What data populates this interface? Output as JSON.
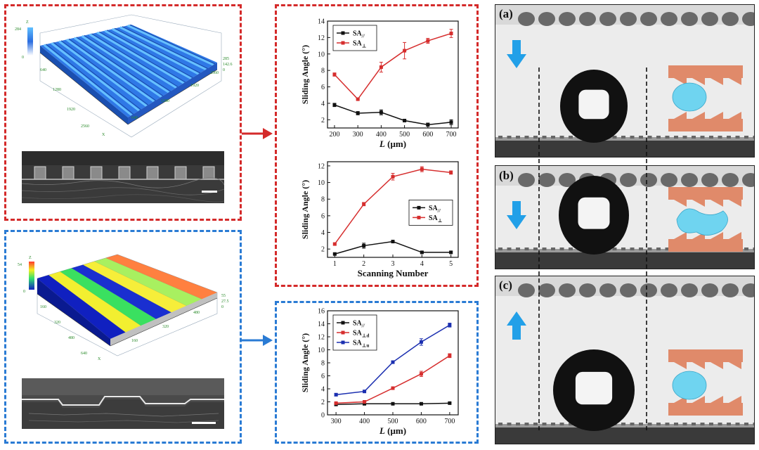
{
  "colors": {
    "red_frame": "#d42a2a",
    "blue_frame": "#2a7bd4",
    "arrow": "#22a0e8",
    "series_black": "#111111",
    "series_red": "#d62e2e",
    "series_blue": "#1b2fb0",
    "inset_orange": "#e08a6a",
    "inset_drop": "#6fd4f0"
  },
  "top_left": {
    "axis_label_z": "Z",
    "axis_label_x": "X",
    "z_ticks": [
      "284",
      "0"
    ],
    "x_ticks": [
      "640",
      "1280",
      "1920",
      "2560"
    ],
    "y_ticks": [
      "640",
      "1280",
      "1920",
      "2560"
    ],
    "right_ticks": [
      "285",
      "142.6",
      "0"
    ]
  },
  "bottom_left": {
    "axis_label_z": "Z",
    "axis_label_x": "X",
    "z_ticks": [
      "54",
      "0"
    ],
    "x_ticks": [
      "160",
      "320",
      "480",
      "640"
    ],
    "y_ticks": [
      "160",
      "320",
      "480"
    ],
    "right_ticks": [
      "55",
      "27.5",
      "0"
    ]
  },
  "chart_data": [
    {
      "type": "line",
      "ylabel": "Sliding Angle (°)",
      "xlabel": "L (μm)",
      "xlabel_italic": "L",
      "xlabel_unit": " (μm)",
      "x": [
        200,
        300,
        400,
        500,
        600,
        700
      ],
      "xlim": [
        170,
        730
      ],
      "ylim": [
        1,
        14
      ],
      "xticks": [
        "200",
        "300",
        "400",
        "500",
        "600",
        "700"
      ],
      "yticks": [
        "2",
        "4",
        "6",
        "8",
        "10",
        "12",
        "14"
      ],
      "legend": "top-left",
      "series": [
        {
          "name": "SA//",
          "base": "SA",
          "sub": "//",
          "color": "#111111",
          "values": [
            3.8,
            2.8,
            2.9,
            1.9,
            1.4,
            1.7
          ],
          "errors": [
            0.2,
            0.2,
            0.3,
            0.1,
            0.2,
            0.3
          ]
        },
        {
          "name": "SA⊥",
          "base": "SA",
          "sub": "⊥",
          "color": "#d62e2e",
          "values": [
            7.5,
            4.5,
            8.4,
            10.4,
            11.6,
            12.5
          ],
          "errors": [
            0.2,
            0.1,
            0.6,
            1.0,
            0.3,
            0.5
          ]
        }
      ]
    },
    {
      "type": "line",
      "ylabel": "Sliding Angle (°)",
      "xlabel": "Scanning Number",
      "x": [
        1,
        2,
        3,
        4,
        5
      ],
      "xlim": [
        0.75,
        5.25
      ],
      "ylim": [
        1,
        12.5
      ],
      "xticks": [
        "1",
        "2",
        "3",
        "4",
        "5"
      ],
      "yticks": [
        "2",
        "4",
        "6",
        "8",
        "10",
        "12"
      ],
      "legend": "middle-right",
      "series": [
        {
          "name": "SA//",
          "base": "SA",
          "sub": "//",
          "color": "#111111",
          "values": [
            1.4,
            2.4,
            2.9,
            1.6,
            1.6
          ],
          "errors": [
            0.1,
            0.3,
            0.1,
            0.1,
            0.1
          ]
        },
        {
          "name": "SA⊥",
          "base": "SA",
          "sub": "⊥",
          "color": "#d62e2e",
          "values": [
            2.6,
            7.4,
            10.7,
            11.6,
            11.2
          ],
          "errors": [
            0.1,
            0.2,
            0.4,
            0.3,
            0.2
          ]
        }
      ]
    },
    {
      "type": "line",
      "ylabel": "Sliding Angle (°)",
      "xlabel": "L (μm)",
      "xlabel_italic": "L",
      "xlabel_unit": " (μm)",
      "x": [
        300,
        400,
        500,
        600,
        700
      ],
      "xlim": [
        270,
        730
      ],
      "ylim": [
        0,
        16
      ],
      "xticks": [
        "300",
        "400",
        "500",
        "600",
        "700"
      ],
      "yticks": [
        "0",
        "2",
        "4",
        "6",
        "8",
        "10",
        "12",
        "14",
        "16"
      ],
      "legend": "top-left",
      "series": [
        {
          "name": "SA//",
          "base": "SA",
          "sub": "//",
          "color": "#111111",
          "values": [
            1.6,
            1.7,
            1.7,
            1.7,
            1.8
          ],
          "errors": [
            0.1,
            0.1,
            0.1,
            0.1,
            0.1
          ]
        },
        {
          "name": "SA⊥d",
          "base": "SA",
          "sub": "⊥d",
          "color": "#d62e2e",
          "values": [
            1.8,
            2.0,
            4.1,
            6.3,
            9.1
          ],
          "errors": [
            0.1,
            0.2,
            0.2,
            0.4,
            0.3
          ]
        },
        {
          "name": "SA⊥u",
          "base": "SA",
          "sub": "⊥u",
          "color": "#1b2fb0",
          "values": [
            3.1,
            3.6,
            8.1,
            11.2,
            13.8
          ],
          "errors": [
            0.2,
            0.1,
            0.2,
            0.5,
            0.3
          ]
        }
      ]
    }
  ],
  "right_panels": {
    "labels": [
      "(a)",
      "(b)",
      "(c)"
    ],
    "arrow_directions": [
      "down",
      "down",
      "up"
    ]
  }
}
